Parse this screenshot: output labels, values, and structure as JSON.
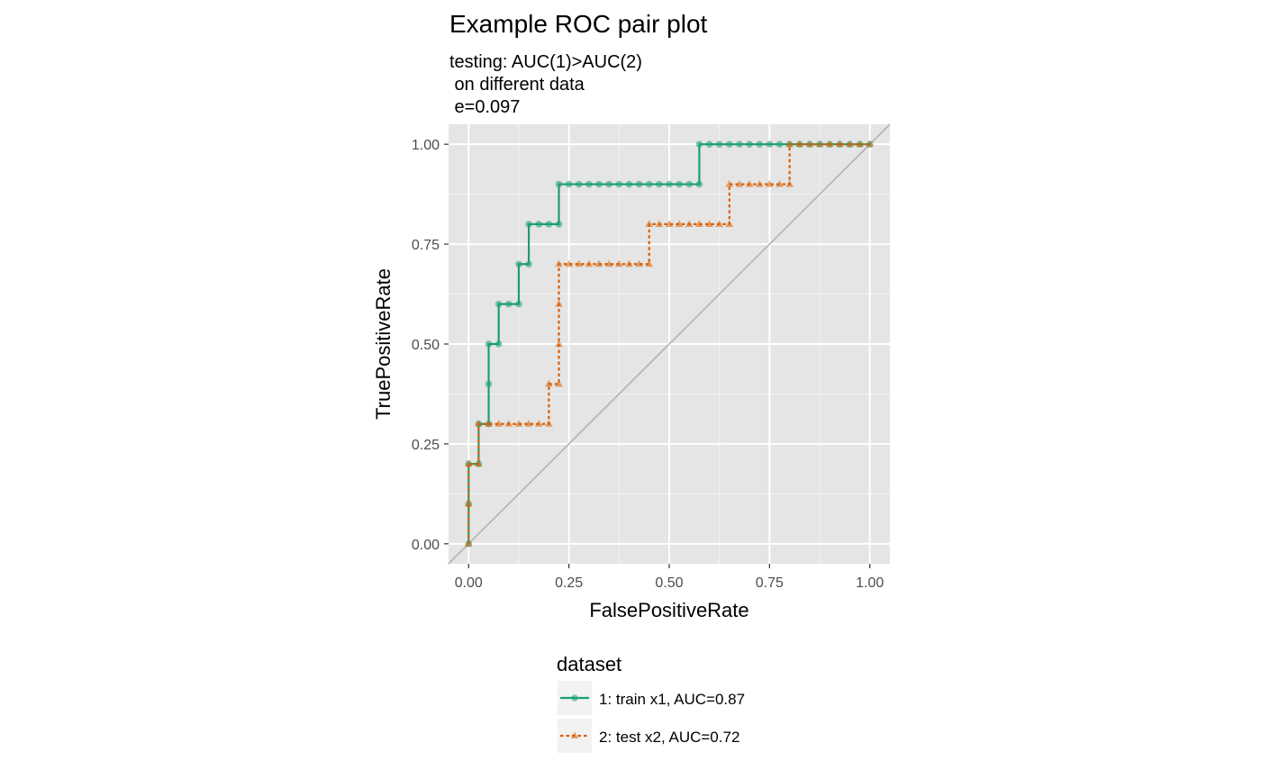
{
  "chart_data": {
    "type": "line",
    "title": "Example ROC pair plot",
    "subtitle_lines": [
      "testing: AUC(1)>AUC(2)",
      " on different data",
      " e=0.097"
    ],
    "xlabel": "FalsePositiveRate",
    "ylabel": "TruePositiveRate",
    "xlim": [
      -0.05,
      1.05
    ],
    "ylim": [
      -0.05,
      1.05
    ],
    "x_ticks": [
      0,
      0.25,
      0.5,
      0.75,
      1.0
    ],
    "y_ticks": [
      0,
      0.25,
      0.5,
      0.75,
      1.0
    ],
    "x_tick_labels": [
      "0.00",
      "0.25",
      "0.50",
      "0.75",
      "1.00"
    ],
    "y_tick_labels": [
      "0.00",
      "0.25",
      "0.50",
      "0.75",
      "1.00"
    ],
    "grid": true,
    "reference_line": "diagonal",
    "legend": {
      "title": "dataset",
      "position": "bottom"
    },
    "series": [
      {
        "name": "1: train x1, AUC=0.87",
        "color": "#1b9e77",
        "line_style": "solid",
        "marker": "circle",
        "points": [
          [
            0.0,
            0.0
          ],
          [
            0.0,
            0.1
          ],
          [
            0.0,
            0.2
          ],
          [
            0.025,
            0.2
          ],
          [
            0.025,
            0.3
          ],
          [
            0.05,
            0.3
          ],
          [
            0.05,
            0.4
          ],
          [
            0.05,
            0.5
          ],
          [
            0.075,
            0.5
          ],
          [
            0.075,
            0.6
          ],
          [
            0.1,
            0.6
          ],
          [
            0.125,
            0.6
          ],
          [
            0.125,
            0.7
          ],
          [
            0.15,
            0.7
          ],
          [
            0.15,
            0.8
          ],
          [
            0.175,
            0.8
          ],
          [
            0.2,
            0.8
          ],
          [
            0.225,
            0.8
          ],
          [
            0.225,
            0.9
          ],
          [
            0.25,
            0.9
          ],
          [
            0.275,
            0.9
          ],
          [
            0.3,
            0.9
          ],
          [
            0.325,
            0.9
          ],
          [
            0.35,
            0.9
          ],
          [
            0.375,
            0.9
          ],
          [
            0.4,
            0.9
          ],
          [
            0.425,
            0.9
          ],
          [
            0.45,
            0.9
          ],
          [
            0.475,
            0.9
          ],
          [
            0.5,
            0.9
          ],
          [
            0.525,
            0.9
          ],
          [
            0.55,
            0.9
          ],
          [
            0.575,
            0.9
          ],
          [
            0.575,
            1.0
          ],
          [
            0.6,
            1.0
          ],
          [
            0.625,
            1.0
          ],
          [
            0.65,
            1.0
          ],
          [
            0.675,
            1.0
          ],
          [
            0.7,
            1.0
          ],
          [
            0.725,
            1.0
          ],
          [
            0.75,
            1.0
          ],
          [
            0.775,
            1.0
          ],
          [
            0.8,
            1.0
          ],
          [
            0.825,
            1.0
          ],
          [
            0.85,
            1.0
          ],
          [
            0.875,
            1.0
          ],
          [
            0.9,
            1.0
          ],
          [
            0.925,
            1.0
          ],
          [
            0.95,
            1.0
          ],
          [
            0.975,
            1.0
          ],
          [
            1.0,
            1.0
          ]
        ]
      },
      {
        "name": "2: test x2, AUC=0.72",
        "color": "#d95f02",
        "line_style": "dotted",
        "marker": "triangle",
        "points": [
          [
            0.0,
            0.0
          ],
          [
            0.0,
            0.1
          ],
          [
            0.0,
            0.2
          ],
          [
            0.025,
            0.2
          ],
          [
            0.025,
            0.3
          ],
          [
            0.05,
            0.3
          ],
          [
            0.075,
            0.3
          ],
          [
            0.1,
            0.3
          ],
          [
            0.125,
            0.3
          ],
          [
            0.15,
            0.3
          ],
          [
            0.175,
            0.3
          ],
          [
            0.2,
            0.3
          ],
          [
            0.2,
            0.4
          ],
          [
            0.225,
            0.4
          ],
          [
            0.225,
            0.5
          ],
          [
            0.225,
            0.6
          ],
          [
            0.225,
            0.7
          ],
          [
            0.25,
            0.7
          ],
          [
            0.275,
            0.7
          ],
          [
            0.3,
            0.7
          ],
          [
            0.325,
            0.7
          ],
          [
            0.35,
            0.7
          ],
          [
            0.375,
            0.7
          ],
          [
            0.4,
            0.7
          ],
          [
            0.425,
            0.7
          ],
          [
            0.45,
            0.7
          ],
          [
            0.45,
            0.8
          ],
          [
            0.475,
            0.8
          ],
          [
            0.5,
            0.8
          ],
          [
            0.525,
            0.8
          ],
          [
            0.55,
            0.8
          ],
          [
            0.575,
            0.8
          ],
          [
            0.6,
            0.8
          ],
          [
            0.625,
            0.8
          ],
          [
            0.65,
            0.8
          ],
          [
            0.65,
            0.9
          ],
          [
            0.675,
            0.9
          ],
          [
            0.7,
            0.9
          ],
          [
            0.725,
            0.9
          ],
          [
            0.75,
            0.9
          ],
          [
            0.775,
            0.9
          ],
          [
            0.8,
            0.9
          ],
          [
            0.8,
            1.0
          ],
          [
            0.825,
            1.0
          ],
          [
            0.85,
            1.0
          ],
          [
            0.875,
            1.0
          ],
          [
            0.9,
            1.0
          ],
          [
            0.925,
            1.0
          ],
          [
            0.95,
            1.0
          ],
          [
            0.975,
            1.0
          ],
          [
            1.0,
            1.0
          ]
        ]
      }
    ]
  }
}
